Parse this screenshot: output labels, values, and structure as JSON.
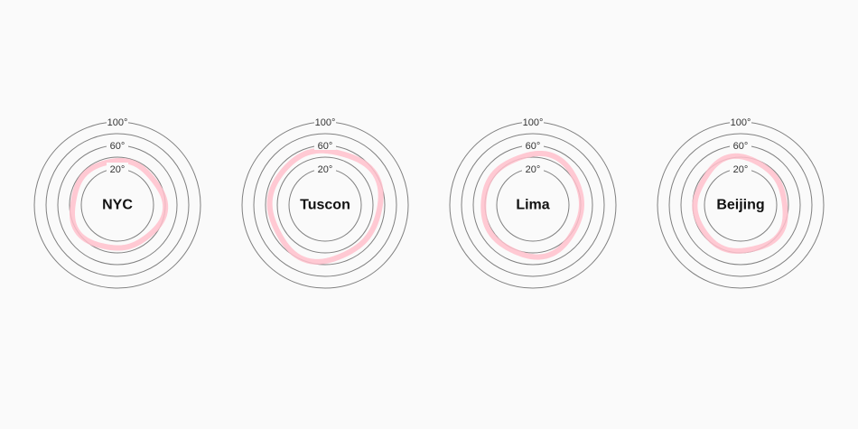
{
  "chart_data": {
    "type": "radial-band",
    "rings": [
      20,
      40,
      60,
      80,
      100
    ],
    "ring_labels": [
      "20°",
      "60°",
      "100°"
    ],
    "ring_label_values": [
      20,
      60,
      100
    ],
    "band_color": "#ffc0cb",
    "ring_color": "#808080",
    "cities": [
      {
        "name": "NYC",
        "low": 28,
        "high": 42
      },
      {
        "name": "Tuscon",
        "low": 45,
        "high": 60
      },
      {
        "name": "Lima",
        "low": 38,
        "high": 50
      },
      {
        "name": "Beijing",
        "low": 30,
        "high": 44
      }
    ]
  }
}
